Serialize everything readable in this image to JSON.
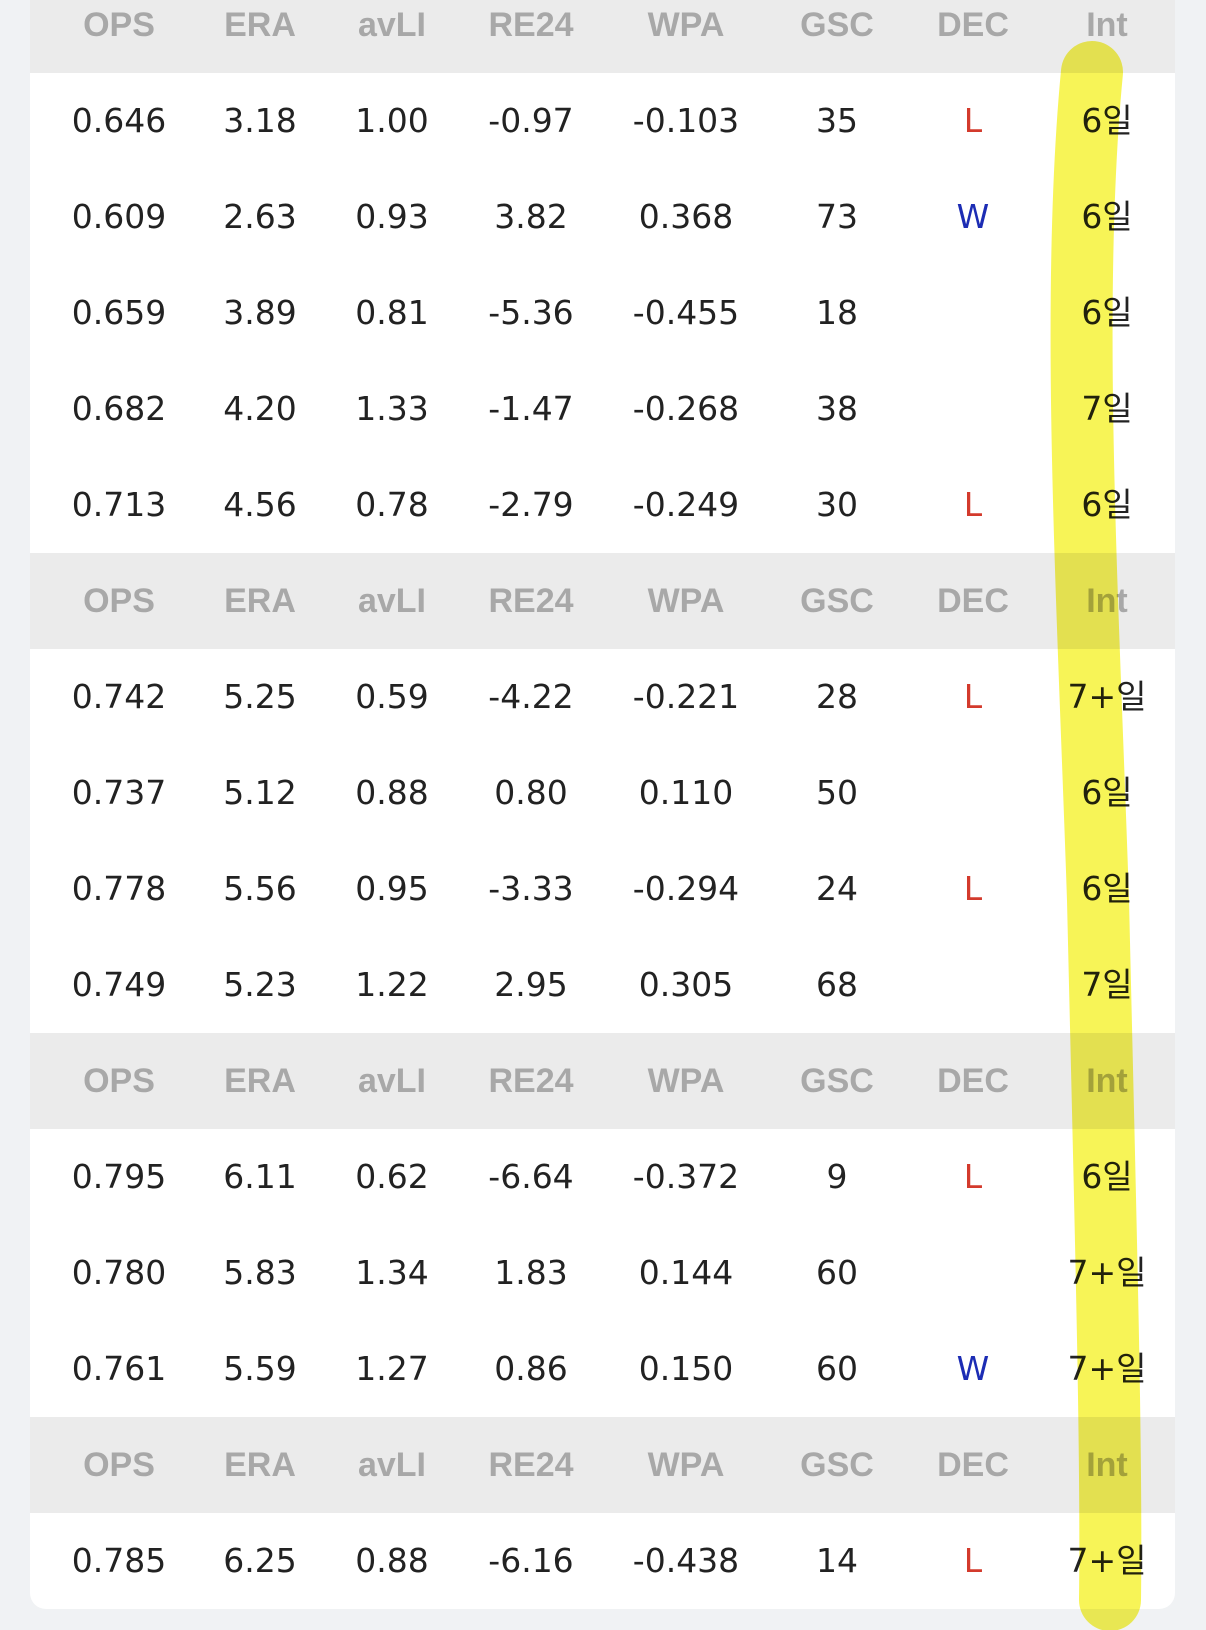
{
  "sections": [
    {
      "header": [
        "OPS",
        "ERA",
        "avLI",
        "RE24",
        "WPA",
        "GSC",
        "DEC",
        "Int"
      ],
      "rows": [
        [
          "0.646",
          "3.18",
          "1.00",
          "-0.97",
          "-0.103",
          "35",
          "L",
          "6일"
        ],
        [
          "0.609",
          "2.63",
          "0.93",
          "3.82",
          "0.368",
          "73",
          "W",
          "6일"
        ],
        [
          "0.659",
          "3.89",
          "0.81",
          "-5.36",
          "-0.455",
          "18",
          null,
          "6일"
        ],
        [
          "0.682",
          "4.20",
          "1.33",
          "-1.47",
          "-0.268",
          "38",
          null,
          "7일"
        ],
        [
          "0.713",
          "4.56",
          "0.78",
          "-2.79",
          "-0.249",
          "30",
          "L",
          "6일"
        ]
      ]
    },
    {
      "header": [
        "OPS",
        "ERA",
        "avLI",
        "RE24",
        "WPA",
        "GSC",
        "DEC",
        "Int"
      ],
      "rows": [
        [
          "0.742",
          "5.25",
          "0.59",
          "-4.22",
          "-0.221",
          "28",
          "L",
          "7+일"
        ],
        [
          "0.737",
          "5.12",
          "0.88",
          "0.80",
          "0.110",
          "50",
          null,
          "6일"
        ],
        [
          "0.778",
          "5.56",
          "0.95",
          "-3.33",
          "-0.294",
          "24",
          "L",
          "6일"
        ],
        [
          "0.749",
          "5.23",
          "1.22",
          "2.95",
          "0.305",
          "68",
          null,
          "7일"
        ]
      ]
    },
    {
      "header": [
        "OPS",
        "ERA",
        "avLI",
        "RE24",
        "WPA",
        "GSC",
        "DEC",
        "Int"
      ],
      "rows": [
        [
          "0.795",
          "6.11",
          "0.62",
          "-6.64",
          "-0.372",
          "9",
          "L",
          "6일"
        ],
        [
          "0.780",
          "5.83",
          "1.34",
          "1.83",
          "0.144",
          "60",
          null,
          "7+일"
        ],
        [
          "0.761",
          "5.59",
          "1.27",
          "0.86",
          "0.150",
          "60",
          "W",
          "7+일"
        ]
      ]
    },
    {
      "header": [
        "OPS",
        "ERA",
        "avLI",
        "RE24",
        "WPA",
        "GSC",
        "DEC",
        "Int"
      ],
      "rows": [
        [
          "0.785",
          "6.25",
          "0.88",
          "-6.16",
          "-0.438",
          "14",
          "L",
          "7+일"
        ]
      ]
    }
  ]
}
